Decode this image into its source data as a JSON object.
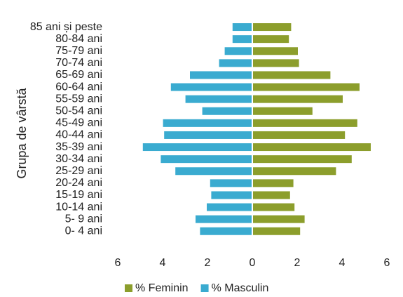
{
  "chart_data": {
    "type": "pyramid",
    "ylabel": "Grupa de vârstă",
    "categories": [
      "85 ani și peste",
      "80-84 ani",
      "75-79 ani",
      "70-74 ani",
      "65-69 ani",
      "60-64 ani",
      "55-59 ani",
      "50-54 ani",
      "45-49 ani",
      "40-44 ani",
      "35-39 ani",
      "30-34 ani",
      "25-29 ani",
      "20-24 ani",
      "15-19 ani",
      "10-14 ani",
      "5- 9 ani",
      "0- 4 ani"
    ],
    "series": [
      {
        "name": "% Feminin",
        "color": "#8c9e2c",
        "side": "right",
        "values": [
          1.7,
          1.6,
          2.0,
          2.05,
          3.45,
          4.75,
          4.0,
          2.65,
          4.65,
          4.1,
          5.25,
          4.4,
          3.7,
          1.8,
          1.65,
          1.85,
          2.3,
          2.1
        ]
      },
      {
        "name": "% Masculin",
        "color": "#3aabd0",
        "side": "left",
        "values": [
          0.85,
          0.85,
          1.2,
          1.45,
          2.75,
          3.6,
          2.95,
          2.2,
          3.95,
          3.9,
          4.85,
          4.05,
          3.4,
          1.85,
          1.8,
          2.0,
          2.5,
          2.3
        ]
      }
    ],
    "xlim": [
      -6,
      6
    ],
    "xticks": [
      {
        "value": -6,
        "label": "6"
      },
      {
        "value": -4,
        "label": "4"
      },
      {
        "value": -2,
        "label": "2"
      },
      0,
      2,
      4,
      6
    ],
    "legend": "bottom"
  }
}
